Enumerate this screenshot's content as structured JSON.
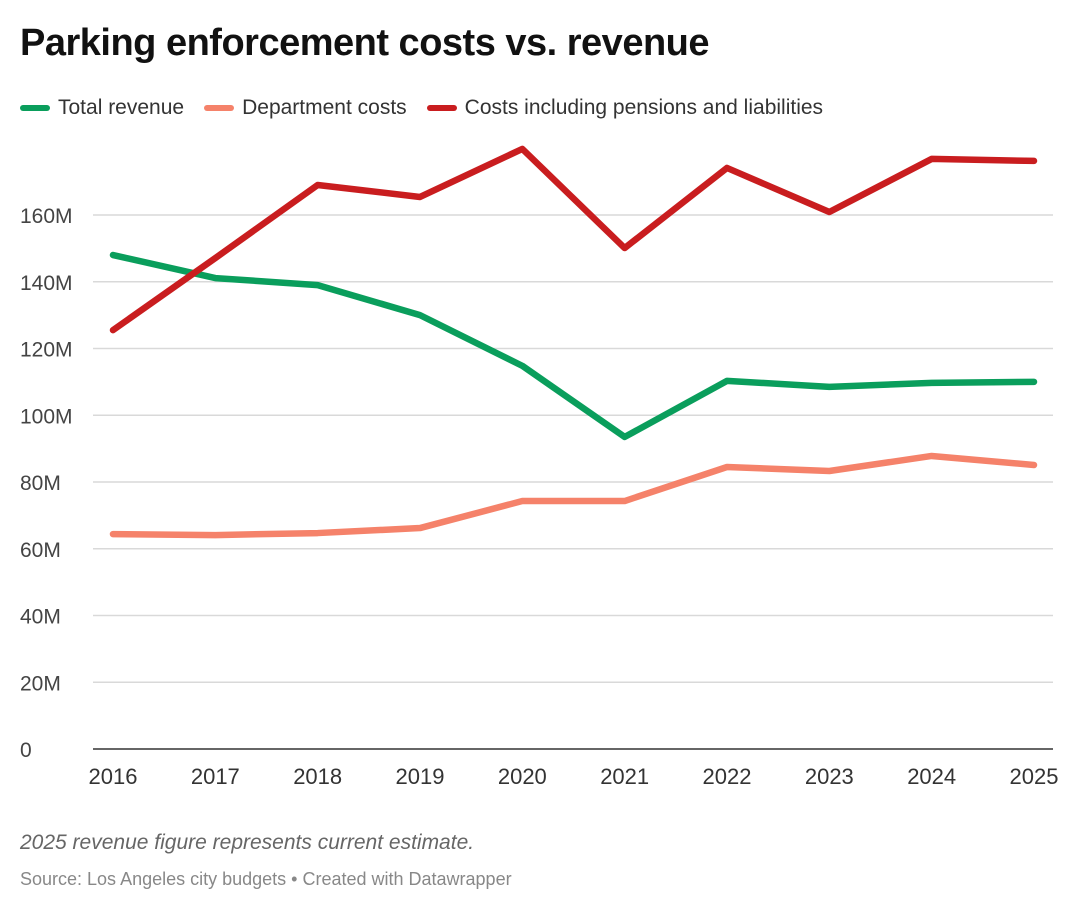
{
  "chart_data": {
    "type": "line",
    "title": "Parking enforcement costs vs. revenue",
    "x": [
      2016,
      2017,
      2018,
      2019,
      2020,
      2021,
      2022,
      2023,
      2024,
      2025
    ],
    "series": [
      {
        "name": "Total revenue",
        "color": "#0a9e5c",
        "values": [
          148.0,
          141.1,
          139.0,
          130.0,
          114.8,
          93.5,
          110.3,
          108.5,
          109.7,
          110.0
        ]
      },
      {
        "name": "Department costs",
        "color": "#f5826a",
        "values": [
          64.4,
          64.1,
          64.7,
          66.2,
          74.3,
          74.3,
          84.5,
          83.3,
          87.8,
          85.1
        ]
      },
      {
        "name": "Costs including pensions and liabilities",
        "color": "#c91d1f",
        "values": [
          125.5,
          147.1,
          169.0,
          165.4,
          179.8,
          150.1,
          174.1,
          160.9,
          176.8,
          176.2
        ]
      }
    ],
    "yticks": [
      0,
      20,
      40,
      60,
      80,
      100,
      120,
      140,
      160
    ],
    "ytick_labels": [
      "0",
      "20M",
      "40M",
      "60M",
      "80M",
      "100M",
      "120M",
      "140M",
      "160M"
    ],
    "ylim": [
      0,
      180
    ],
    "unit": "millions",
    "grid": true,
    "legend": "top-left"
  },
  "notes": {
    "footnote": "2025 revenue figure represents current estimate.",
    "source": "Source: Los Angeles city budgets • Created with Datawrapper"
  }
}
